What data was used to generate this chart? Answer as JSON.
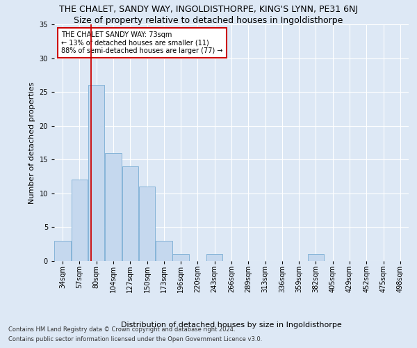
{
  "title": "THE CHALET, SANDY WAY, INGOLDISTHORPE, KING'S LYNN, PE31 6NJ",
  "subtitle": "Size of property relative to detached houses in Ingoldisthorpe",
  "xlabel": "Distribution of detached houses by size in Ingoldisthorpe",
  "ylabel": "Number of detached properties",
  "footnote1": "Contains HM Land Registry data © Crown copyright and database right 2024.",
  "footnote2": "Contains public sector information licensed under the Open Government Licence v3.0.",
  "bin_labels": [
    "34sqm",
    "57sqm",
    "80sqm",
    "104sqm",
    "127sqm",
    "150sqm",
    "173sqm",
    "196sqm",
    "220sqm",
    "243sqm",
    "266sqm",
    "289sqm",
    "313sqm",
    "336sqm",
    "359sqm",
    "382sqm",
    "405sqm",
    "429sqm",
    "452sqm",
    "475sqm",
    "498sqm"
  ],
  "bar_heights": [
    3,
    12,
    26,
    16,
    14,
    11,
    3,
    1,
    0,
    1,
    0,
    0,
    0,
    0,
    0,
    1,
    0,
    0,
    0,
    0,
    0
  ],
  "bar_color": "#c5d8ee",
  "bar_edge_color": "#7aadd4",
  "vline_x_index": 1.7,
  "vline_color": "#cc0000",
  "annotation_text": "THE CHALET SANDY WAY: 73sqm\n← 13% of detached houses are smaller (11)\n88% of semi-detached houses are larger (77) →",
  "annotation_box_color": "#ffffff",
  "annotation_box_edge": "#cc0000",
  "ylim": [
    0,
    35
  ],
  "yticks": [
    0,
    5,
    10,
    15,
    20,
    25,
    30,
    35
  ],
  "bg_color": "#dde8f5",
  "plot_bg_color": "#dde8f5",
  "grid_color": "#ffffff",
  "title_fontsize": 9,
  "subtitle_fontsize": 9,
  "xlabel_fontsize": 8,
  "ylabel_fontsize": 8,
  "tick_fontsize": 7,
  "annot_fontsize": 7,
  "footnote_fontsize": 6
}
